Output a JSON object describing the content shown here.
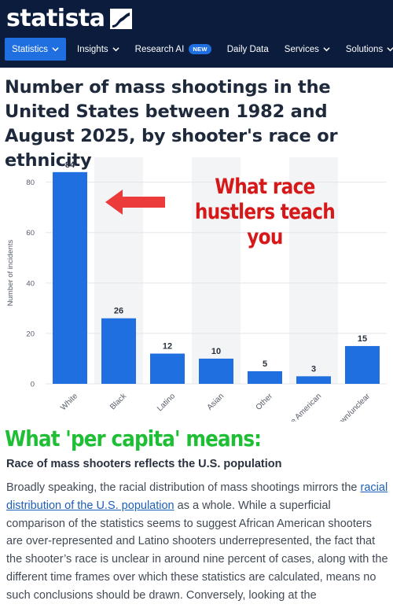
{
  "header": {
    "logo_text": "statista",
    "nav": [
      {
        "label": "Statistics",
        "active": true,
        "chevron": true
      },
      {
        "label": "Insights",
        "chevron": true
      },
      {
        "label": "Research AI",
        "badge": "NEW"
      },
      {
        "label": "Daily Data"
      },
      {
        "label": "Services",
        "chevron": true
      },
      {
        "label": "Solutions",
        "chevron": true
      }
    ]
  },
  "page": {
    "title": "Number of mass shootings in the United States between 1982 and August 2025, by shooter's race or ethnicity"
  },
  "chart_data": {
    "type": "bar",
    "categories": [
      "White",
      "Black",
      "Latino",
      "Asian",
      "Other",
      "Native American",
      "Unknown/unclear"
    ],
    "values": [
      84,
      26,
      12,
      10,
      5,
      3,
      15
    ],
    "ylabel": "Number of incidents",
    "yticks": [
      0,
      20,
      40,
      60,
      80
    ],
    "ylim": [
      0,
      88
    ],
    "bar_color": "#1f6fe0",
    "band_color": "#f3f4f6"
  },
  "annotations": {
    "race_line1": "What race",
    "race_line2": "hustlers teach you",
    "per_capita": "What 'per capita' means:"
  },
  "article": {
    "subheading": "Race of mass shooters reflects the U.S. population",
    "p_before_link": "Broadly speaking, the racial distribution of mass shootings mirrors the ",
    "link_text": "racial distribution of the U.S. population",
    "p_after_link": " as a whole. While a superficial comparison of the statistics seems to suggest African American shooters are over-represented and Latino shooters underrepresented, the fact that the shooter’s race is unclear in around nine percent of cases, along with the different time frames over which these statistics are calculated, means no such conclusions should be drawn. Conversely, looking at the"
  }
}
